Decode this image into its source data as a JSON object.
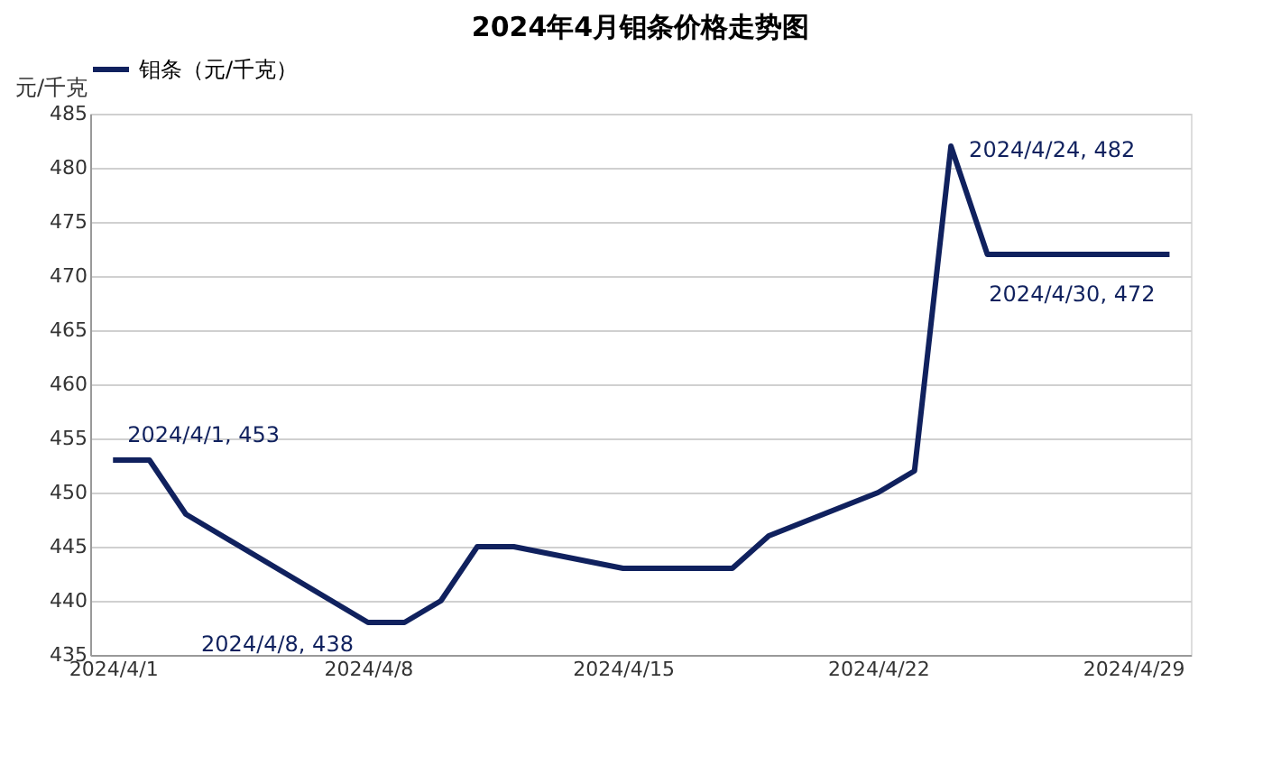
{
  "chart_data": {
    "type": "line",
    "title": "2024年4月钼条价格走势图",
    "ylabel": "元/千克",
    "x": [
      "2024-04-01",
      "2024-04-02",
      "2024-04-03",
      "2024-04-08",
      "2024-04-09",
      "2024-04-10",
      "2024-04-11",
      "2024-04-12",
      "2024-04-15",
      "2024-04-18",
      "2024-04-19",
      "2024-04-22",
      "2024-04-23",
      "2024-04-24",
      "2024-04-25",
      "2024-04-30"
    ],
    "series": [
      {
        "name": "钼条（元/千克）",
        "color": "#10215e",
        "values": [
          453,
          453,
          448,
          438,
          438,
          440,
          445,
          445,
          443,
          443,
          446,
          450,
          452,
          482,
          472,
          472
        ]
      }
    ],
    "xlim": [
      "2024-03-31T09:00",
      "2024-04-30T14:00"
    ],
    "xticks": [
      {
        "value": "2024-04-01",
        "label": "2024/4/1"
      },
      {
        "value": "2024-04-08",
        "label": "2024/4/8"
      },
      {
        "value": "2024-04-15",
        "label": "2024/4/15"
      },
      {
        "value": "2024-04-22",
        "label": "2024/4/22"
      },
      {
        "value": "2024-04-29",
        "label": "2024/4/29"
      }
    ],
    "ylim": [
      435,
      485
    ],
    "yticks": [
      435,
      440,
      445,
      450,
      455,
      460,
      465,
      470,
      475,
      480,
      485
    ],
    "grid": "y",
    "legend": "top",
    "marker": "none",
    "line_style": "solid",
    "annotations": [
      {
        "text": "2024/4/1, 453",
        "x": "2024-04-01",
        "y": 453
      },
      {
        "text": "2024/4/8, 438",
        "x": "2024-04-08",
        "y": 438
      },
      {
        "text": "2024/4/24, 482",
        "x": "2024-04-24",
        "y": 482
      },
      {
        "text": "2024/4/30, 472",
        "x": "2024-04-30",
        "y": 472
      }
    ]
  }
}
